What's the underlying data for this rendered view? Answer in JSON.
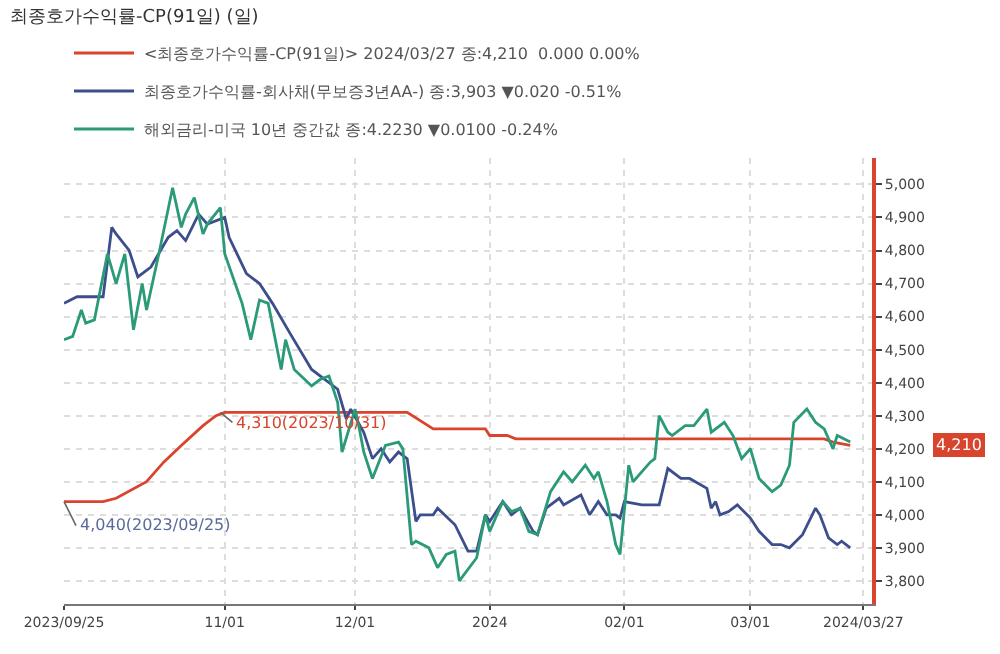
{
  "chart_data": {
    "type": "line",
    "title": "최종호가수익률-CP(91일) (일)",
    "xlim": [
      "2023-09-25",
      "2024-03-29"
    ],
    "xticks": [
      {
        "value": "2023-09-25",
        "label": "2023/09/25"
      },
      {
        "value": "2023-11-01",
        "label": "11/01"
      },
      {
        "value": "2023-12-01",
        "label": "12/01"
      },
      {
        "value": "2024-01-01",
        "label": "2024"
      },
      {
        "value": "2024-02-01",
        "label": "02/01"
      },
      {
        "value": "2024-03-01",
        "label": "03/01"
      },
      {
        "value": "2024-03-27",
        "label": "2024/03/27"
      }
    ],
    "ylim": [
      3730,
      5080
    ],
    "yticks": [
      {
        "value": 3800,
        "label": "3,800"
      },
      {
        "value": 3900,
        "label": "3,900"
      },
      {
        "value": 4000,
        "label": "4,000"
      },
      {
        "value": 4100,
        "label": "4,100"
      },
      {
        "value": 4200,
        "label": "4,200"
      },
      {
        "value": 4300,
        "label": "4,300"
      },
      {
        "value": 4400,
        "label": "4,400"
      },
      {
        "value": 4500,
        "label": "4,500"
      },
      {
        "value": 4600,
        "label": "4,600"
      },
      {
        "value": 4700,
        "label": "4,700"
      },
      {
        "value": 4800,
        "label": "4,800"
      },
      {
        "value": 4900,
        "label": "4,900"
      },
      {
        "value": 5000,
        "label": "5,000"
      }
    ],
    "grid": true,
    "legend": "top left",
    "marker": "none",
    "line_style": "solid",
    "series": [
      {
        "name": "<최종호가수익률-CP(91일)> 2024/03/27 종:4,210  0.000 0.00%",
        "color": "#d9442c",
        "x": [
          "2023-09-25",
          "2023-10-04",
          "2023-10-07",
          "2023-10-14",
          "2023-10-18",
          "2023-10-22",
          "2023-10-27",
          "2023-10-30",
          "2023-11-01",
          "2023-12-13",
          "2023-12-19",
          "2023-12-31",
          "2024-01-01",
          "2024-01-05",
          "2024-01-07",
          "2024-03-18",
          "2024-03-20",
          "2024-03-24"
        ],
        "values": [
          4040,
          4040,
          4050,
          4100,
          4160,
          4210,
          4270,
          4300,
          4310,
          4310,
          4260,
          4260,
          4240,
          4240,
          4230,
          4230,
          4220,
          4210
        ]
      },
      {
        "name": "최종호가수익률-회사채(무보증3년AA-) 종:3,903 ▼0.020 -0.51%",
        "color": "#3c4f8c",
        "x": [
          "2023-09-25",
          "2023-09-28",
          "2023-10-04",
          "2023-10-06",
          "2023-10-07",
          "2023-10-10",
          "2023-10-12",
          "2023-10-15",
          "2023-10-19",
          "2023-10-21",
          "2023-10-23",
          "2023-10-26",
          "2023-10-28",
          "2023-11-01",
          "2023-11-02",
          "2023-11-06",
          "2023-11-09",
          "2023-11-12",
          "2023-11-16",
          "2023-11-21",
          "2023-11-27",
          "2023-11-29",
          "2023-11-30",
          "2023-12-03",
          "2023-12-05",
          "2023-12-07",
          "2023-12-09",
          "2023-12-11",
          "2023-12-13",
          "2023-12-15",
          "2023-12-16",
          "2023-12-19",
          "2023-12-20",
          "2023-12-24",
          "2023-12-27",
          "2023-12-29",
          "2023-12-31",
          "2024-01-01",
          "2024-01-04",
          "2024-01-06",
          "2024-01-08",
          "2024-01-11",
          "2024-01-12",
          "2024-01-14",
          "2024-01-17",
          "2024-01-18",
          "2024-01-22",
          "2024-01-24",
          "2024-01-26",
          "2024-01-28",
          "2024-01-30",
          "2024-01-31",
          "2024-02-01",
          "2024-02-05",
          "2024-02-09",
          "2024-02-11",
          "2024-02-14",
          "2024-02-16",
          "2024-02-20",
          "2024-02-21",
          "2024-02-22",
          "2024-02-23",
          "2024-02-25",
          "2024-02-27",
          "2024-03-01",
          "2024-03-03",
          "2024-03-06",
          "2024-03-08",
          "2024-03-10",
          "2024-03-13",
          "2024-03-16",
          "2024-03-17",
          "2024-03-19",
          "2024-03-21",
          "2024-03-22",
          "2024-03-24"
        ],
        "values": [
          4640,
          4660,
          4660,
          4870,
          4850,
          4800,
          4720,
          4750,
          4840,
          4860,
          4830,
          4910,
          4880,
          4900,
          4840,
          4730,
          4700,
          4640,
          4550,
          4440,
          4380,
          4290,
          4320,
          4250,
          4170,
          4200,
          4160,
          4190,
          4170,
          3980,
          4000,
          4000,
          4020,
          3970,
          3890,
          3890,
          4000,
          3980,
          4040,
          4000,
          4020,
          3950,
          3940,
          4020,
          4050,
          4030,
          4060,
          4000,
          4040,
          4000,
          4000,
          3990,
          4040,
          4030,
          4030,
          4140,
          4110,
          4110,
          4080,
          4020,
          4040,
          4000,
          4010,
          4030,
          3990,
          3950,
          3910,
          3910,
          3900,
          3940,
          4020,
          4000,
          3930,
          3910,
          3920,
          3900
        ]
      },
      {
        "name": "해외금리-미국 10년 중간값 종:4.2230 ▼0.0100 -0.24%",
        "color": "#2a9a78",
        "x": [
          "2023-09-25",
          "2023-09-27",
          "2023-09-29",
          "2023-09-30",
          "2023-10-02",
          "2023-10-05",
          "2023-10-07",
          "2023-10-09",
          "2023-10-11",
          "2023-10-13",
          "2023-10-14",
          "2023-10-17",
          "2023-10-20",
          "2023-10-22",
          "2023-10-23",
          "2023-10-25",
          "2023-10-27",
          "2023-10-28",
          "2023-10-31",
          "2023-11-01",
          "2023-11-05",
          "2023-11-07",
          "2023-11-09",
          "2023-11-11",
          "2023-11-14",
          "2023-11-15",
          "2023-11-17",
          "2023-11-21",
          "2023-11-23",
          "2023-11-25",
          "2023-11-27",
          "2023-11-28",
          "2023-12-01",
          "2023-12-02",
          "2023-12-03",
          "2023-12-05",
          "2023-12-08",
          "2023-12-11",
          "2023-12-12",
          "2023-12-14",
          "2023-12-15",
          "2023-12-18",
          "2023-12-20",
          "2023-12-22",
          "2023-12-24",
          "2023-12-25",
          "2023-12-29",
          "2023-12-31",
          "2024-01-01",
          "2024-01-04",
          "2024-01-06",
          "2024-01-08",
          "2024-01-10",
          "2024-01-12",
          "2024-01-15",
          "2024-01-18",
          "2024-01-20",
          "2024-01-23",
          "2024-01-25",
          "2024-01-26",
          "2024-01-28",
          "2024-01-30",
          "2024-01-31",
          "2024-02-02",
          "2024-02-03",
          "2024-02-07",
          "2024-02-08",
          "2024-02-09",
          "2024-02-11",
          "2024-02-12",
          "2024-02-15",
          "2024-02-17",
          "2024-02-20",
          "2024-02-21",
          "2024-02-24",
          "2024-02-26",
          "2024-02-28",
          "2024-03-01",
          "2024-03-03",
          "2024-03-06",
          "2024-03-08",
          "2024-03-10",
          "2024-03-11",
          "2024-03-14",
          "2024-03-16",
          "2024-03-18",
          "2024-03-20",
          "2024-03-21",
          "2024-03-24"
        ],
        "values": [
          4530,
          4540,
          4620,
          4580,
          4590,
          4790,
          4700,
          4790,
          4560,
          4700,
          4620,
          4800,
          4990,
          4870,
          4910,
          4960,
          4850,
          4880,
          4930,
          4790,
          4640,
          4530,
          4650,
          4640,
          4440,
          4530,
          4440,
          4390,
          4410,
          4420,
          4340,
          4190,
          4320,
          4260,
          4190,
          4110,
          4210,
          4220,
          4200,
          3910,
          3920,
          3900,
          3840,
          3880,
          3890,
          3800,
          3870,
          4000,
          3950,
          4040,
          4010,
          4020,
          3950,
          3940,
          4070,
          4130,
          4100,
          4150,
          4110,
          4130,
          4040,
          3910,
          3880,
          4150,
          4100,
          4160,
          4170,
          4300,
          4250,
          4240,
          4270,
          4270,
          4320,
          4250,
          4280,
          4240,
          4170,
          4200,
          4110,
          4070,
          4090,
          4150,
          4280,
          4320,
          4280,
          4260,
          4200,
          4240,
          4220
        ]
      }
    ],
    "annotations": [
      {
        "text": "4,310(2023/10/31)",
        "x": "2023-10-31",
        "y": 4310
      },
      {
        "text": "4,040(2023/09/25)",
        "x": "2023-09-25",
        "y": 4040
      },
      "4,210"
    ]
  }
}
